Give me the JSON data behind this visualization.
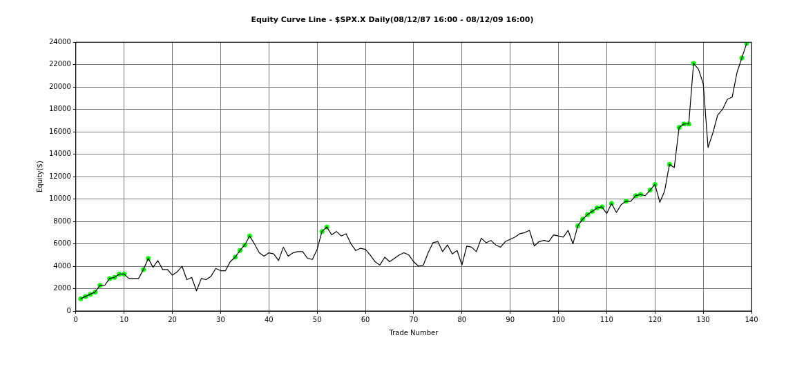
{
  "chart_data": {
    "type": "line",
    "title": "Equity Curve Line - $SPX.X Daily(08/12/87 16:00 - 08/12/09 16:00)",
    "xlabel": "Trade Number",
    "ylabel": "Equity($)",
    "xlim": [
      0,
      140
    ],
    "xticks": [
      0,
      10,
      20,
      30,
      40,
      50,
      60,
      70,
      80,
      90,
      100,
      110,
      120,
      130,
      140
    ],
    "ylim": [
      0,
      24000
    ],
    "yticks": [
      0,
      2000,
      4000,
      6000,
      8000,
      10000,
      12000,
      14000,
      16000,
      18000,
      20000,
      22000,
      24000
    ],
    "grid": true,
    "series": [
      {
        "color": "#000000",
        "marker": "none",
        "x": [
          1,
          2,
          3,
          4,
          5,
          6,
          7,
          8,
          9,
          10,
          11,
          12,
          13,
          14,
          15,
          16,
          17,
          18,
          19,
          20,
          21,
          22,
          23,
          24,
          25,
          26,
          27,
          28,
          29,
          30,
          31,
          32,
          33,
          34,
          35,
          36,
          37,
          38,
          39,
          40,
          41,
          42,
          43,
          44,
          45,
          46,
          47,
          48,
          49,
          50,
          51,
          52,
          53,
          54,
          55,
          56,
          57,
          58,
          59,
          60,
          61,
          62,
          63,
          64,
          65,
          66,
          67,
          68,
          69,
          70,
          71,
          72,
          73,
          74,
          75,
          76,
          77,
          78,
          79,
          80,
          81,
          82,
          83,
          84,
          85,
          86,
          87,
          88,
          89,
          90,
          91,
          92,
          93,
          94,
          95,
          96,
          97,
          98,
          99,
          100,
          101,
          102,
          103,
          104,
          105,
          106,
          107,
          108,
          109,
          110,
          111,
          112,
          113,
          114,
          115,
          116,
          117,
          118,
          119,
          120,
          121,
          122,
          123,
          124,
          125,
          126,
          127,
          128,
          129,
          130,
          131,
          132,
          133,
          134,
          135,
          136,
          137,
          138,
          139
        ],
        "values": [
          1100,
          1300,
          1500,
          1700,
          2300,
          2300,
          2900,
          3000,
          3300,
          3300,
          2900,
          2900,
          2900,
          3700,
          4700,
          3900,
          4500,
          3700,
          3700,
          3200,
          3500,
          4000,
          2800,
          3000,
          1800,
          2900,
          2800,
          3100,
          3800,
          3600,
          3600,
          4400,
          4800,
          5400,
          5900,
          6700,
          6000,
          5200,
          4900,
          5200,
          5100,
          4500,
          5700,
          4900,
          5200,
          5300,
          5300,
          4700,
          4600,
          5500,
          7100,
          7500,
          6800,
          7100,
          6700,
          6900,
          6000,
          5400,
          5600,
          5500,
          5000,
          4400,
          4100,
          4800,
          4400,
          4700,
          5000,
          5200,
          5000,
          4400,
          4000,
          4100,
          5200,
          6100,
          6200,
          5300,
          5900,
          5100,
          5400,
          4100,
          5800,
          5700,
          5300,
          6500,
          6100,
          6300,
          5900,
          5700,
          6200,
          6400,
          6600,
          6900,
          7000,
          7200,
          5800,
          6200,
          6300,
          6200,
          6800,
          6700,
          6600,
          7200,
          6000,
          7600,
          8200,
          8600,
          8900,
          9200,
          9300,
          8700,
          9600,
          8800,
          9500,
          9800,
          9800,
          10300,
          10400,
          10300,
          10800,
          11300,
          9700,
          10700,
          13100,
          12800,
          16400,
          16700,
          16700,
          22100,
          21600,
          20300,
          14600,
          15900,
          17500,
          18000,
          18900,
          19100,
          21300,
          22600,
          23900
        ]
      },
      {
        "type": "scatter",
        "color": "#00ff00",
        "marker": "circle",
        "x": [
          1,
          2,
          3,
          4,
          5,
          7,
          8,
          9,
          10,
          14,
          15,
          33,
          34,
          35,
          36,
          51,
          52,
          104,
          105,
          106,
          107,
          108,
          109,
          111,
          114,
          116,
          117,
          119,
          120,
          123,
          125,
          126,
          127,
          128,
          138,
          139
        ],
        "values": [
          1100,
          1300,
          1500,
          1700,
          2300,
          2900,
          3000,
          3300,
          3300,
          3700,
          4700,
          4800,
          5400,
          5900,
          6700,
          7100,
          7500,
          7600,
          8200,
          8600,
          8900,
          9200,
          9300,
          9600,
          9800,
          10300,
          10400,
          10800,
          11300,
          13100,
          16400,
          16700,
          16700,
          22100,
          22600,
          23900
        ]
      }
    ]
  }
}
